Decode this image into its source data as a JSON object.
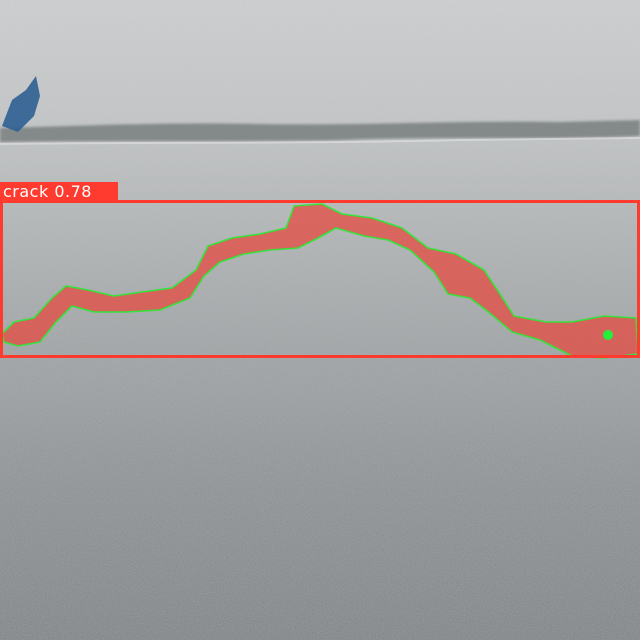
{
  "detection": {
    "class_name": "crack",
    "confidence": "0.78",
    "box_color": "#ff3b30",
    "mask_color": "#e8463c",
    "contour_color": "#37e23a",
    "keypoint_color": "#22f03a"
  },
  "scene": {
    "surface": "concrete-pavement",
    "upper_color": "#c9ccce",
    "lower_color": "#7d8184",
    "groove_color": "#6f7677"
  }
}
